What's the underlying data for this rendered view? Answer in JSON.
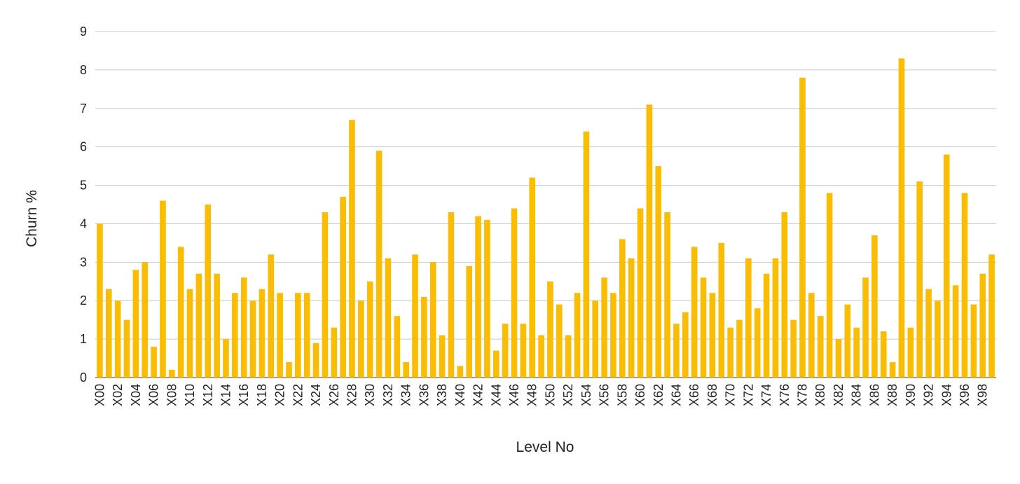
{
  "chart_data": {
    "type": "bar",
    "x_label": "Level No",
    "y_label": "Churn %",
    "categories": [
      "X00",
      null,
      "X02",
      null,
      "X04",
      null,
      "X06",
      null,
      "X08",
      null,
      "X10",
      null,
      "X12",
      null,
      "X14",
      null,
      "X16",
      null,
      "X18",
      null,
      "X20",
      null,
      "X22",
      null,
      "X24",
      null,
      "X26",
      null,
      "X28",
      null,
      "X30",
      null,
      "X32",
      null,
      "X34",
      null,
      "X36",
      null,
      "X38",
      null,
      "X40",
      null,
      "X42",
      null,
      "X44",
      null,
      "X46",
      null,
      "X48",
      null,
      "X50",
      null,
      "X52",
      null,
      "X54",
      null,
      "X56",
      null,
      "X58",
      null,
      "X60",
      null,
      "X62",
      null,
      "X64",
      null,
      "X66",
      null,
      "X68",
      null,
      "X70",
      null,
      "X72",
      null,
      "X74",
      null,
      "X76",
      null,
      "X78",
      null,
      "X80",
      null,
      "X82",
      null,
      "X84",
      null,
      "X86",
      null,
      "X88",
      null,
      "X90",
      null,
      "X92",
      null,
      "X94",
      null,
      "X96",
      null,
      "X98",
      null
    ],
    "values": [
      4.0,
      2.3,
      2.0,
      1.5,
      2.8,
      3.0,
      0.8,
      4.6,
      0.2,
      3.4,
      2.3,
      2.7,
      4.5,
      2.7,
      1.0,
      2.2,
      2.6,
      2.0,
      2.3,
      3.2,
      2.2,
      0.4,
      2.2,
      2.2,
      0.9,
      4.3,
      1.3,
      4.7,
      6.7,
      2.0,
      2.5,
      5.9,
      3.1,
      1.6,
      0.4,
      3.2,
      2.1,
      3.0,
      1.1,
      4.3,
      0.3,
      2.9,
      4.2,
      4.1,
      0.7,
      1.4,
      4.4,
      1.4,
      5.2,
      1.1,
      2.5,
      1.9,
      1.1,
      2.2,
      6.4,
      2.0,
      2.6,
      2.2,
      3.6,
      3.1,
      4.4,
      7.1,
      5.5,
      4.3,
      1.4,
      1.7,
      3.4,
      2.6,
      2.2,
      3.5,
      1.3,
      1.5,
      3.1,
      1.8,
      2.7,
      3.1,
      4.3,
      1.5,
      7.8,
      2.2,
      1.6,
      4.8,
      1.0,
      1.9,
      1.3,
      2.6,
      3.7,
      1.2,
      0.4,
      8.3,
      1.3,
      5.1,
      2.3,
      2.0,
      5.8,
      2.4,
      4.8,
      1.9,
      2.7,
      3.2
    ],
    "color": "#fbbc04",
    "ylim": [
      0,
      9
    ],
    "yticks": [
      0,
      1,
      2,
      3,
      4,
      5,
      6,
      7,
      8,
      9
    ],
    "grid": true
  }
}
